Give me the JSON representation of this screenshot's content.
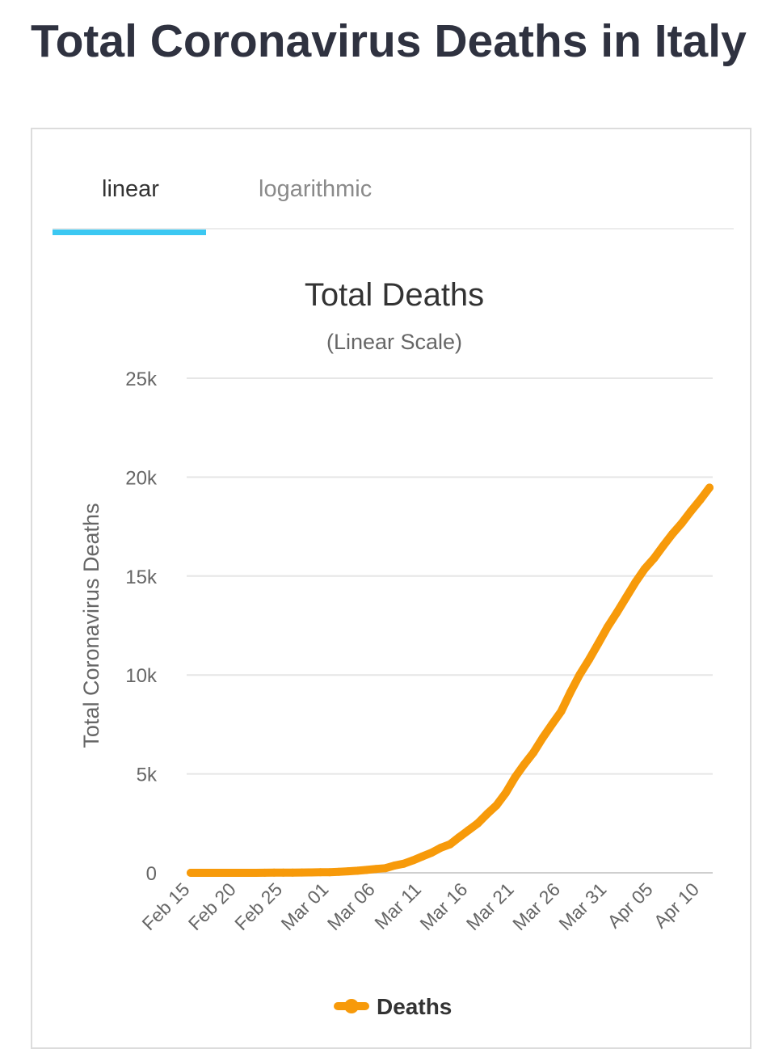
{
  "page": {
    "title": "Total Coronavirus Deaths in Italy"
  },
  "tabs": [
    {
      "label": "linear",
      "active": true
    },
    {
      "label": "logarithmic",
      "active": false
    }
  ],
  "colors": {
    "line": "#f79a0a",
    "tab_indicator": "#3cc8f2",
    "grid": "#e6e6e6"
  },
  "chart_data": {
    "type": "line",
    "title": "Total Deaths",
    "subtitle": "(Linear Scale)",
    "xlabel": "",
    "ylabel": "Total Coronavirus Deaths",
    "ylim": [
      0,
      25000
    ],
    "yticks": [
      0,
      5000,
      10000,
      15000,
      20000,
      25000
    ],
    "ytick_labels": [
      "0",
      "5k",
      "10k",
      "15k",
      "20k",
      "25k"
    ],
    "xtick_labels": [
      "Feb 15",
      "Feb 20",
      "Feb 25",
      "Mar 01",
      "Mar 06",
      "Mar 11",
      "Mar 16",
      "Mar 21",
      "Mar 26",
      "Mar 31",
      "Apr 05",
      "Apr 10"
    ],
    "grid": true,
    "legend": "bottom",
    "series": [
      {
        "name": "Deaths",
        "x": [
          "Feb 15",
          "Feb 16",
          "Feb 17",
          "Feb 18",
          "Feb 19",
          "Feb 20",
          "Feb 21",
          "Feb 22",
          "Feb 23",
          "Feb 24",
          "Feb 25",
          "Feb 26",
          "Feb 27",
          "Feb 28",
          "Feb 29",
          "Mar 01",
          "Mar 02",
          "Mar 03",
          "Mar 04",
          "Mar 05",
          "Mar 06",
          "Mar 07",
          "Mar 08",
          "Mar 09",
          "Mar 10",
          "Mar 11",
          "Mar 12",
          "Mar 13",
          "Mar 14",
          "Mar 15",
          "Mar 16",
          "Mar 17",
          "Mar 18",
          "Mar 19",
          "Mar 20",
          "Mar 21",
          "Mar 22",
          "Mar 23",
          "Mar 24",
          "Mar 25",
          "Mar 26",
          "Mar 27",
          "Mar 28",
          "Mar 29",
          "Mar 30",
          "Mar 31",
          "Apr 01",
          "Apr 02",
          "Apr 03",
          "Apr 04",
          "Apr 05",
          "Apr 06",
          "Apr 07",
          "Apr 08",
          "Apr 09",
          "Apr 10",
          "Apr 11"
        ],
        "values": [
          0,
          0,
          0,
          0,
          0,
          0,
          1,
          2,
          3,
          7,
          10,
          12,
          17,
          21,
          29,
          34,
          52,
          79,
          107,
          148,
          197,
          233,
          366,
          463,
          631,
          827,
          1016,
          1266,
          1441,
          1809,
          2158,
          2503,
          2978,
          3405,
          4032,
          4825,
          5476,
          6077,
          6820,
          7503,
          8165,
          9134,
          10023,
          10779,
          11591,
          12428,
          13155,
          13915,
          14681,
          15362,
          15887,
          16523,
          17127,
          17669,
          18279,
          18849,
          19468
        ]
      }
    ]
  }
}
